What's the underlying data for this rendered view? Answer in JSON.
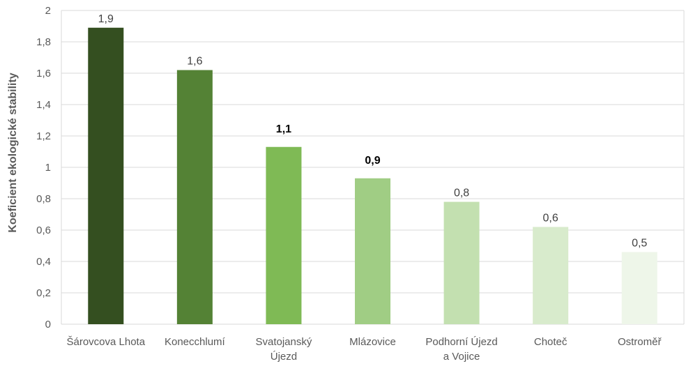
{
  "chart_data": {
    "type": "bar",
    "title": "",
    "xlabel": "",
    "ylabel": "Koeficient ekologické stability",
    "ylim": [
      0,
      2
    ],
    "yticks": [
      0,
      0.2,
      0.4,
      0.6,
      0.8,
      1,
      1.2,
      1.4,
      1.6,
      1.8,
      2
    ],
    "ytick_labels": [
      "0",
      "0,2",
      "0,4",
      "0,6",
      "0,8",
      "1",
      "1,2",
      "1,4",
      "1,6",
      "1,8",
      "2"
    ],
    "grid": true,
    "categories": [
      [
        "Šárovcova Lhota"
      ],
      [
        "Konecchlumí"
      ],
      [
        "Svatojanský",
        "Újezd"
      ],
      [
        "Mlázovice"
      ],
      [
        "Podhorní Újezd",
        "a Vojice"
      ],
      [
        "Choteč"
      ],
      [
        "Ostroměř"
      ]
    ],
    "values": [
      1.89,
      1.62,
      1.13,
      0.93,
      0.78,
      0.62,
      0.46
    ],
    "data_labels": [
      "1,9",
      "1,6",
      "1,1",
      "0,9",
      "0,8",
      "0,6",
      "0,5"
    ],
    "bold_labels": [
      false,
      false,
      true,
      true,
      false,
      false,
      false
    ],
    "colors": [
      "#344f20",
      "#548235",
      "#7fba55",
      "#a0cd84",
      "#c3e0b0",
      "#d8ebcc",
      "#eef6e9"
    ]
  }
}
